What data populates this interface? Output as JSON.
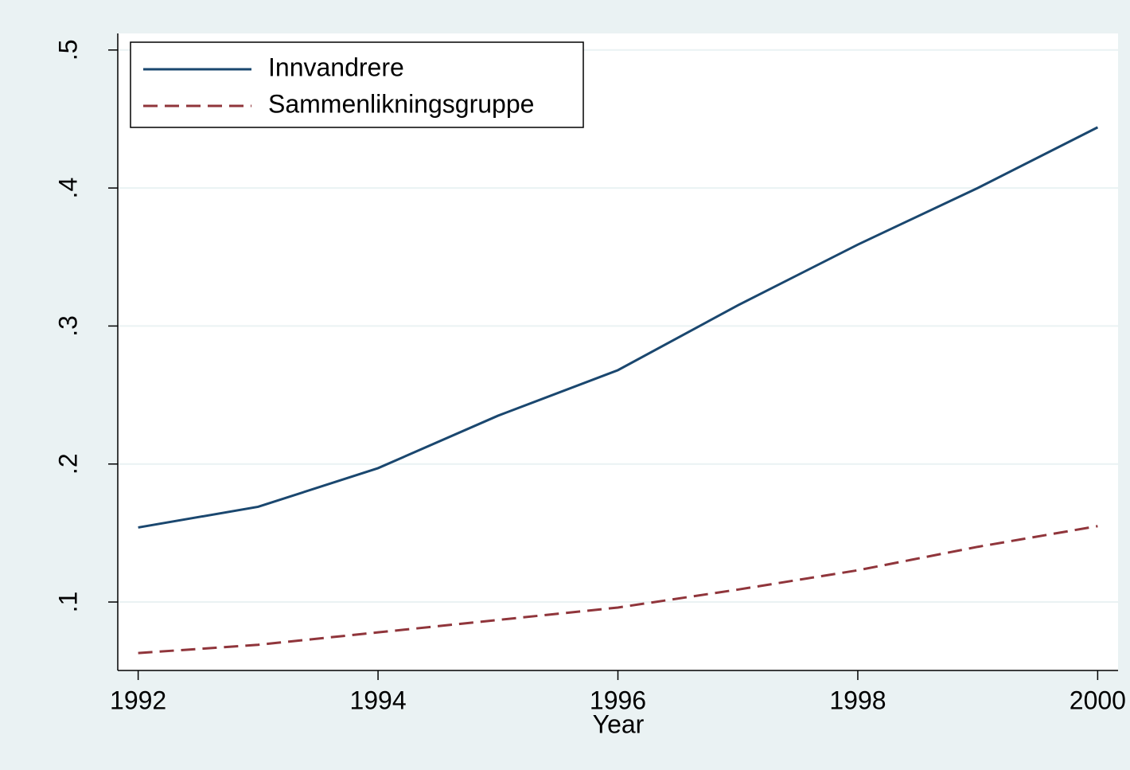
{
  "chart_data": {
    "type": "line",
    "x": [
      1992,
      1993,
      1994,
      1995,
      1996,
      1997,
      1998,
      1999,
      2000
    ],
    "series": [
      {
        "name": "Innvandrere",
        "color": "#1a476f",
        "dash": false,
        "values": [
          0.154,
          0.169,
          0.197,
          0.235,
          0.268,
          0.315,
          0.359,
          0.4,
          0.444
        ]
      },
      {
        "name": "Sammenlikningsgruppe",
        "color": "#90353b",
        "dash": true,
        "values": [
          0.063,
          0.069,
          0.078,
          0.087,
          0.096,
          0.109,
          0.123,
          0.14,
          0.155
        ]
      }
    ],
    "xlabel": "Year",
    "xlim": [
      1991.83,
      2000.17
    ],
    "xticks": [
      1992,
      1994,
      1996,
      1998,
      2000
    ],
    "ylim": [
      0.0504,
      0.512
    ],
    "yticks": [
      {
        "value": 0.1,
        "label": ".1"
      },
      {
        "value": 0.2,
        "label": ".2"
      },
      {
        "value": 0.3,
        "label": ".3"
      },
      {
        "value": 0.4,
        "label": ".4"
      },
      {
        "value": 0.5,
        "label": ".5"
      }
    ],
    "grid": true,
    "legend": "top-left"
  }
}
